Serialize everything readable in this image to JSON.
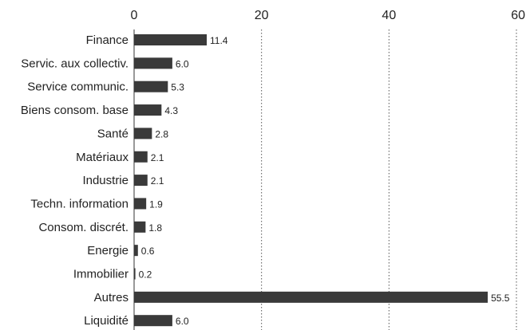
{
  "chart_data": {
    "type": "bar",
    "orientation": "horizontal",
    "title": "",
    "xlabel": "",
    "ylabel": "",
    "xlim": [
      0,
      60
    ],
    "x_ticks": [
      0,
      20,
      40,
      60
    ],
    "x_tick_labels": [
      "0",
      "20",
      "40",
      "60"
    ],
    "x_axis_position": "top",
    "grid": "vertical dotted",
    "legend": "none",
    "categories": [
      "Finance",
      "Servic. aux collectiv.",
      "Service communic.",
      "Biens consom. base",
      "Santé",
      "Matériaux",
      "Industrie",
      "Techn. information",
      "Consom. discrét.",
      "Energie",
      "Immobilier",
      "Autres",
      "Liquidité"
    ],
    "values": [
      11.4,
      6.0,
      5.3,
      4.3,
      2.8,
      2.1,
      2.1,
      1.9,
      1.8,
      0.6,
      0.2,
      55.5,
      6.0
    ],
    "value_labels": [
      "11.4",
      "6.0",
      "5.3",
      "4.3",
      "2.8",
      "2.1",
      "2.1",
      "1.9",
      "1.8",
      "0.6",
      "0.2",
      "55.5",
      "6.0"
    ],
    "colors": {
      "bar": "#3a3a3a",
      "grid": "#555555",
      "axis": "#333333",
      "text": "#222222"
    }
  }
}
